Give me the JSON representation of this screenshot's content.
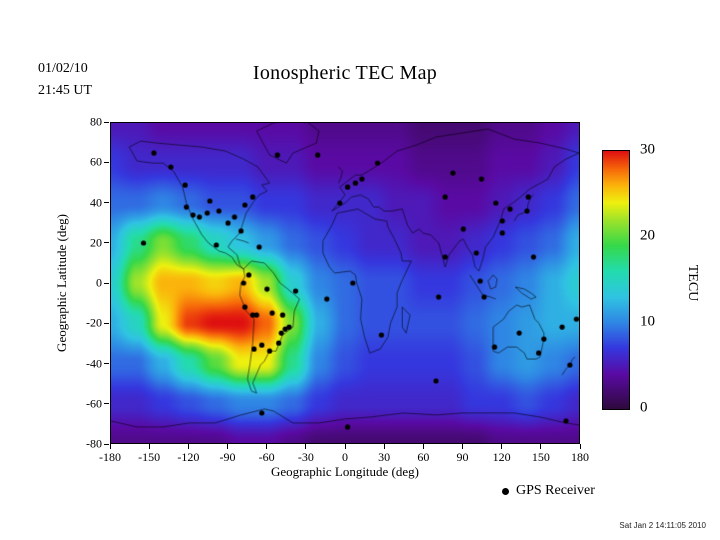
{
  "header": {
    "date_line1": "01/02/10",
    "date_line2": "21:45 UT",
    "title": "Ionospheric TEC Map"
  },
  "legend": {
    "gps_label": "GPS Receiver"
  },
  "footer": {
    "timestamp": "Sat Jan  2 14:11:05 2010"
  },
  "colorbar": {
    "unit_label": "TECU",
    "tick_values": [
      30,
      20,
      10,
      0
    ],
    "min": 0,
    "max": 30
  },
  "chart_data": {
    "type": "heatmap",
    "title": "Ionospheric TEC Map",
    "xlabel": "Geographic Longitude (deg)",
    "ylabel": "Geographic Latitude (deg)",
    "unit": "TECU",
    "x_ticks": [
      -180,
      -150,
      -120,
      -90,
      -60,
      -30,
      0,
      30,
      60,
      90,
      120,
      150,
      180
    ],
    "y_ticks": [
      80,
      60,
      40,
      20,
      0,
      -20,
      -40,
      -60,
      -80
    ],
    "lon_range": [
      -180,
      180
    ],
    "lat_range": [
      -80,
      80
    ],
    "value_range": [
      0,
      30
    ],
    "grid_lons": [
      -180,
      -160,
      -140,
      -120,
      -100,
      -80,
      -60,
      -40,
      -20,
      0,
      20,
      40,
      60,
      80,
      100,
      120,
      140,
      160,
      180
    ],
    "grid_lats": [
      80,
      60,
      40,
      20,
      0,
      -20,
      -40,
      -60,
      -80
    ],
    "tec_values": [
      [
        5,
        5,
        4,
        4,
        4,
        4,
        4,
        4,
        3,
        3,
        3,
        3,
        2,
        2,
        2,
        3,
        3,
        4,
        5
      ],
      [
        7,
        6,
        6,
        6,
        6,
        6,
        5,
        5,
        4,
        4,
        4,
        4,
        3,
        3,
        3,
        4,
        4,
        5,
        7
      ],
      [
        9,
        9,
        10,
        9,
        8,
        8,
        7,
        7,
        6,
        6,
        6,
        5,
        5,
        4,
        4,
        5,
        6,
        7,
        9
      ],
      [
        12,
        17,
        21,
        18,
        15,
        13,
        11,
        9,
        8,
        7,
        6,
        6,
        5,
        5,
        6,
        7,
        8,
        9,
        12
      ],
      [
        14,
        22,
        26,
        26,
        25,
        26,
        22,
        14,
        10,
        9,
        8,
        8,
        7,
        7,
        8,
        9,
        10,
        12,
        14
      ],
      [
        12,
        15,
        24,
        29,
        30,
        30,
        28,
        21,
        12,
        9,
        8,
        8,
        8,
        8,
        9,
        10,
        11,
        12,
        12
      ],
      [
        9,
        9,
        12,
        16,
        20,
        24,
        24,
        17,
        10,
        8,
        7,
        7,
        7,
        7,
        8,
        10,
        11,
        10,
        9
      ],
      [
        6,
        6,
        7,
        8,
        9,
        10,
        10,
        9,
        7,
        6,
        6,
        6,
        6,
        6,
        7,
        7,
        8,
        7,
        6
      ],
      [
        3,
        3,
        3,
        3,
        3,
        4,
        4,
        3,
        2,
        2,
        2,
        2,
        2,
        2,
        2,
        3,
        3,
        3,
        3
      ]
    ],
    "colormap": [
      {
        "v": 0,
        "c": "#30093f"
      },
      {
        "v": 4,
        "c": "#5a0aa4"
      },
      {
        "v": 7,
        "c": "#3537de"
      },
      {
        "v": 10,
        "c": "#2f86e4"
      },
      {
        "v": 13,
        "c": "#2fc4e2"
      },
      {
        "v": 16,
        "c": "#23dcae"
      },
      {
        "v": 19,
        "c": "#35d84a"
      },
      {
        "v": 22,
        "c": "#9fe32a"
      },
      {
        "v": 24,
        "c": "#eef00f"
      },
      {
        "v": 26,
        "c": "#fbb40b"
      },
      {
        "v": 28,
        "c": "#f6660a"
      },
      {
        "v": 30,
        "c": "#df1010"
      }
    ],
    "gps_receivers": [
      [
        -147,
        65
      ],
      [
        -134,
        58
      ],
      [
        -123,
        49
      ],
      [
        -122,
        38
      ],
      [
        -117,
        34
      ],
      [
        -112,
        33
      ],
      [
        -106,
        35
      ],
      [
        -104,
        41
      ],
      [
        -97,
        36
      ],
      [
        -90,
        30
      ],
      [
        -85,
        33
      ],
      [
        -80,
        26
      ],
      [
        -77,
        39
      ],
      [
        -71,
        43
      ],
      [
        -99,
        19
      ],
      [
        -155,
        20
      ],
      [
        -66,
        18
      ],
      [
        -52,
        64
      ],
      [
        -21,
        64
      ],
      [
        -4,
        40
      ],
      [
        2,
        48
      ],
      [
        8,
        50
      ],
      [
        13,
        52
      ],
      [
        25,
        60
      ],
      [
        -74,
        4
      ],
      [
        -78,
        0
      ],
      [
        -77,
        -12
      ],
      [
        -71,
        -16
      ],
      [
        -68,
        -16
      ],
      [
        -64,
        -31
      ],
      [
        -70,
        -33
      ],
      [
        -58,
        -34
      ],
      [
        -51,
        -30
      ],
      [
        -49,
        -25
      ],
      [
        -46,
        -23
      ],
      [
        -43,
        -22
      ],
      [
        -48,
        -16
      ],
      [
        -56,
        -15
      ],
      [
        -38,
        -4
      ],
      [
        -60,
        -3
      ],
      [
        -14,
        -8
      ],
      [
        6,
        0
      ],
      [
        28,
        -26
      ],
      [
        77,
        43
      ],
      [
        105,
        52
      ],
      [
        83,
        55
      ],
      [
        77,
        13
      ],
      [
        91,
        27
      ],
      [
        116,
        40
      ],
      [
        121,
        31
      ],
      [
        127,
        37
      ],
      [
        140,
        36
      ],
      [
        141,
        43
      ],
      [
        121,
        25
      ],
      [
        101,
        15
      ],
      [
        104,
        1
      ],
      [
        145,
        13
      ],
      [
        107,
        -7
      ],
      [
        72,
        -7
      ],
      [
        70,
        -49
      ],
      [
        115,
        -32
      ],
      [
        134,
        -25
      ],
      [
        149,
        -35
      ],
      [
        153,
        -28
      ],
      [
        167,
        -22
      ],
      [
        173,
        -41
      ],
      [
        178,
        -18
      ],
      [
        170,
        -69
      ],
      [
        2,
        -72
      ],
      [
        -64,
        -65
      ]
    ],
    "coastlines": [
      [
        [
          -166,
          68
        ],
        [
          -160,
          61
        ],
        [
          -148,
          60
        ],
        [
          -140,
          60
        ],
        [
          -132,
          56
        ],
        [
          -125,
          48
        ],
        [
          -122,
          40
        ],
        [
          -117,
          32
        ],
        [
          -110,
          24
        ],
        [
          -105,
          20
        ],
        [
          -97,
          16
        ],
        [
          -92,
          15
        ],
        [
          -87,
          13
        ],
        [
          -83,
          9
        ],
        [
          -78,
          7
        ],
        [
          -81,
          9
        ],
        [
          -83,
          14
        ],
        [
          -90,
          18
        ],
        [
          -87,
          21
        ],
        [
          -81,
          25
        ],
        [
          -80,
          27
        ],
        [
          -76,
          35
        ],
        [
          -70,
          41
        ],
        [
          -66,
          44
        ],
        [
          -60,
          46
        ],
        [
          -64,
          49
        ],
        [
          -58,
          50
        ],
        [
          -67,
          58
        ],
        [
          -78,
          62
        ],
        [
          -92,
          66
        ],
        [
          -110,
          68
        ],
        [
          -128,
          69
        ],
        [
          -145,
          70
        ],
        [
          -157,
          71
        ],
        [
          -166,
          68
        ]
      ],
      [
        [
          -58,
          64
        ],
        [
          -45,
          60
        ],
        [
          -40,
          65
        ],
        [
          -22,
          70
        ],
        [
          -20,
          76
        ],
        [
          -32,
          82
        ],
        [
          -55,
          80
        ],
        [
          -68,
          76
        ],
        [
          -58,
          64
        ]
      ],
      [
        [
          -78,
          7
        ],
        [
          -72,
          11
        ],
        [
          -62,
          10
        ],
        [
          -55,
          5
        ],
        [
          -50,
          0
        ],
        [
          -44,
          -3
        ],
        [
          -35,
          -8
        ],
        [
          -39,
          -14
        ],
        [
          -40,
          -22
        ],
        [
          -48,
          -26
        ],
        [
          -53,
          -34
        ],
        [
          -58,
          -34
        ],
        [
          -62,
          -39
        ],
        [
          -65,
          -41
        ],
        [
          -71,
          -50
        ],
        [
          -68,
          -55
        ],
        [
          -72,
          -54
        ],
        [
          -75,
          -48
        ],
        [
          -73,
          -40
        ],
        [
          -71,
          -30
        ],
        [
          -70,
          -18
        ],
        [
          -76,
          -14
        ],
        [
          -81,
          -6
        ],
        [
          -80,
          0
        ],
        [
          -77,
          3
        ],
        [
          -78,
          7
        ]
      ],
      [
        [
          -6,
          35
        ],
        [
          -10,
          29
        ],
        [
          -17,
          21
        ],
        [
          -17,
          15
        ],
        [
          -12,
          8
        ],
        [
          -8,
          5
        ],
        [
          4,
          6
        ],
        [
          8,
          4
        ],
        [
          9,
          0
        ],
        [
          13,
          -8
        ],
        [
          12,
          -18
        ],
        [
          15,
          -27
        ],
        [
          19,
          -35
        ],
        [
          27,
          -33
        ],
        [
          33,
          -27
        ],
        [
          35,
          -20
        ],
        [
          40,
          -12
        ],
        [
          40,
          -5
        ],
        [
          43,
          0
        ],
        [
          51,
          11
        ],
        [
          44,
          11
        ],
        [
          43,
          15
        ],
        [
          38,
          22
        ],
        [
          33,
          28
        ],
        [
          32,
          31
        ],
        [
          23,
          32
        ],
        [
          10,
          37
        ],
        [
          2,
          36
        ],
        [
          -6,
          35
        ]
      ],
      [
        [
          -10,
          36
        ],
        [
          0,
          44
        ],
        [
          -4,
          48
        ],
        [
          2,
          51
        ],
        [
          8,
          54
        ],
        [
          13,
          54
        ],
        [
          18,
          56
        ],
        [
          28,
          60
        ],
        [
          40,
          66
        ],
        [
          55,
          69
        ],
        [
          70,
          73
        ],
        [
          90,
          75
        ],
        [
          110,
          77
        ],
        [
          130,
          72
        ],
        [
          150,
          70
        ],
        [
          170,
          67
        ],
        [
          180,
          65
        ],
        [
          170,
          62
        ],
        [
          161,
          58
        ],
        [
          156,
          52
        ],
        [
          142,
          47
        ],
        [
          135,
          43
        ],
        [
          129,
          40
        ],
        [
          122,
          37
        ],
        [
          120,
          32
        ],
        [
          114,
          23
        ],
        [
          108,
          18
        ],
        [
          106,
          12
        ],
        [
          103,
          6
        ],
        [
          100,
          8
        ],
        [
          98,
          14
        ],
        [
          94,
          18
        ],
        [
          91,
          22
        ],
        [
          88,
          21
        ],
        [
          80,
          14
        ],
        [
          77,
          8
        ],
        [
          72,
          20
        ],
        [
          66,
          24
        ],
        [
          60,
          25
        ],
        [
          57,
          27
        ],
        [
          52,
          25
        ],
        [
          48,
          29
        ],
        [
          44,
          37
        ],
        [
          36,
          36
        ],
        [
          30,
          36
        ],
        [
          26,
          38
        ],
        [
          22,
          38
        ],
        [
          18,
          42
        ],
        [
          12,
          44
        ],
        [
          5,
          43
        ],
        [
          0,
          40
        ],
        [
          -10,
          36
        ]
      ],
      [
        [
          114,
          -22
        ],
        [
          114,
          -34
        ],
        [
          118,
          -35
        ],
        [
          125,
          -32
        ],
        [
          132,
          -32
        ],
        [
          138,
          -35
        ],
        [
          140,
          -38
        ],
        [
          147,
          -38
        ],
        [
          150,
          -37
        ],
        [
          153,
          -28
        ],
        [
          153,
          -25
        ],
        [
          149,
          -20
        ],
        [
          146,
          -18
        ],
        [
          142,
          -11
        ],
        [
          136,
          -12
        ],
        [
          132,
          -11
        ],
        [
          126,
          -14
        ],
        [
          122,
          -18
        ],
        [
          114,
          -22
        ]
      ],
      [
        [
          -180,
          -69
        ],
        [
          -160,
          -72
        ],
        [
          -140,
          -72
        ],
        [
          -120,
          -70
        ],
        [
          -100,
          -70
        ],
        [
          -80,
          -66
        ],
        [
          -62,
          -63
        ],
        [
          -55,
          -64
        ],
        [
          -40,
          -70
        ],
        [
          -20,
          -70
        ],
        [
          0,
          -68
        ],
        [
          20,
          -67
        ],
        [
          45,
          -65
        ],
        [
          70,
          -66
        ],
        [
          90,
          -65
        ],
        [
          110,
          -65
        ],
        [
          130,
          -65
        ],
        [
          150,
          -67
        ],
        [
          170,
          -70
        ],
        [
          180,
          -71
        ]
      ],
      [
        [
          44,
          -12
        ],
        [
          50,
          -16
        ],
        [
          47,
          -25
        ],
        [
          44,
          -22
        ],
        [
          44,
          -12
        ]
      ],
      [
        [
          130,
          31
        ],
        [
          133,
          34
        ],
        [
          137,
          35
        ],
        [
          140,
          36
        ],
        [
          141,
          40
        ],
        [
          143,
          43
        ],
        [
          145,
          44
        ]
      ],
      [
        [
          -5,
          50
        ],
        [
          -3,
          53
        ],
        [
          -2,
          56
        ],
        [
          -5,
          58
        ]
      ],
      [
        [
          96,
          4
        ],
        [
          102,
          -2
        ],
        [
          106,
          -6
        ],
        [
          112,
          -7
        ],
        [
          116,
          -8
        ]
      ],
      [
        [
          110,
          1
        ],
        [
          114,
          4
        ],
        [
          117,
          2
        ],
        [
          116,
          -2
        ],
        [
          112,
          -3
        ],
        [
          110,
          1
        ]
      ],
      [
        [
          131,
          -2
        ],
        [
          138,
          -3
        ],
        [
          143,
          -5
        ],
        [
          147,
          -7
        ],
        [
          143,
          -8
        ],
        [
          136,
          -5
        ],
        [
          131,
          -2
        ]
      ],
      [
        [
          167,
          -46
        ],
        [
          170,
          -43
        ],
        [
          173,
          -41
        ],
        [
          175,
          -38
        ],
        [
          177,
          -37
        ]
      ],
      [
        [
          -84,
          22
        ],
        [
          -78,
          21
        ],
        [
          -74,
          20
        ]
      ]
    ]
  }
}
